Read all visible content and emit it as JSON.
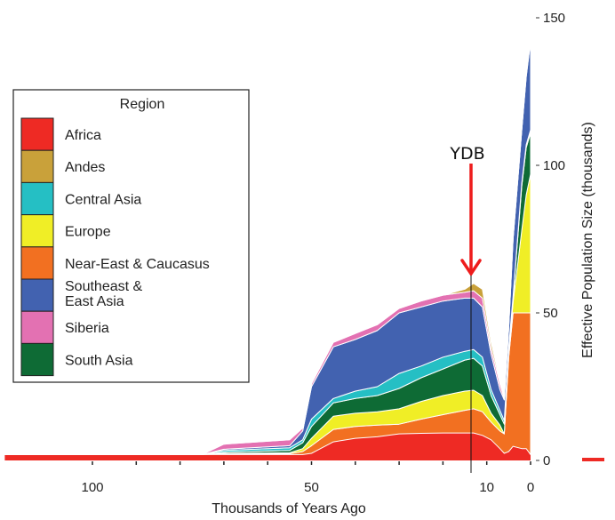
{
  "chart_data": {
    "type": "area",
    "stacked": true,
    "title": "",
    "xlabel": "Thousands of Years Ago",
    "ylabel": "Effective Population Size (thousands)",
    "x_reversed": true,
    "xlim": [
      120,
      0
    ],
    "ylim": [
      0,
      150
    ],
    "x_ticks": [
      100,
      50,
      10,
      0
    ],
    "x_minor_ticks": [
      90,
      80,
      70,
      60,
      40,
      30,
      20
    ],
    "y_ticks": [
      0,
      50,
      100,
      150
    ],
    "y_axis_side": "right",
    "grid": false,
    "legend": {
      "title": "Region",
      "placement": "left"
    },
    "legend_order": [
      "Africa",
      "Andes",
      "Central Asia",
      "Europe",
      "Near-East & Caucasus",
      "Southeast & East Asia",
      "Siberia",
      "South Asia"
    ],
    "x": [
      120,
      75,
      70,
      55,
      52,
      50,
      45,
      40,
      35,
      30,
      25,
      20,
      15,
      13,
      11,
      9,
      7,
      6,
      5,
      4,
      2,
      1,
      0
    ],
    "series": [
      {
        "name": "Africa",
        "color": "#ee2a24",
        "values": [
          2,
          2,
          2,
          2,
          2,
          2.4,
          6.3,
          7.5,
          8,
          9,
          9.2,
          9.3,
          9.3,
          9.3,
          8.5,
          7,
          4,
          2.4,
          3,
          4.8,
          4,
          4,
          2
        ]
      },
      {
        "name": "Near-East & Caucasus",
        "color": "#f27021",
        "values": [
          0,
          0,
          0.2,
          0.3,
          1,
          2.6,
          4.2,
          4,
          4,
          3.3,
          4.8,
          6.2,
          7.7,
          8.2,
          8,
          6,
          6,
          6.6,
          32,
          45.2,
          46,
          46,
          48
        ]
      },
      {
        "name": "Europe",
        "color": "#f0ee26",
        "values": [
          0,
          0,
          0.2,
          0.3,
          1,
          2.5,
          4.5,
          4.5,
          4.5,
          5.2,
          6,
          6.5,
          6.5,
          6.3,
          5.5,
          3,
          2,
          0,
          2,
          3.6,
          28,
          40,
          47
        ]
      },
      {
        "name": "South Asia",
        "color": "#0e6b35",
        "values": [
          0,
          0,
          0.4,
          0.8,
          2,
          4,
          4.5,
          5,
          5.5,
          6.9,
          8,
          9,
          10.5,
          10.8,
          10,
          6,
          3.5,
          3.3,
          1,
          1.4,
          15,
          16,
          14
        ]
      },
      {
        "name": "Central Asia",
        "color": "#25bfc4",
        "values": [
          0,
          0,
          0.6,
          0.9,
          1,
          2.5,
          1.5,
          2.5,
          3,
          5.1,
          4,
          4,
          3,
          3,
          3,
          2,
          1.5,
          1.2,
          0.5,
          0.5,
          1,
          1,
          1
        ]
      },
      {
        "name": "Southeast & East Asia",
        "color": "#4262b0",
        "values": [
          0,
          0,
          0.4,
          0.7,
          3,
          11,
          17.5,
          17.5,
          19,
          20.5,
          20,
          19,
          18,
          17.4,
          17,
          12,
          7,
          7,
          6.5,
          19.5,
          18,
          23,
          30
        ]
      },
      {
        "name": "Siberia",
        "color": "#e371b2",
        "values": [
          0,
          0,
          1.7,
          2,
          1,
          1,
          1.5,
          2,
          2,
          1.5,
          2,
          2,
          2,
          2.5,
          3,
          2,
          2,
          0.5,
          0,
          0,
          0,
          0.5,
          1
        ]
      },
      {
        "name": "Andes",
        "color": "#c9a13a",
        "values": [
          0,
          0,
          0,
          0,
          0,
          0,
          0,
          0,
          0,
          0,
          0,
          0,
          1,
          2.5,
          3,
          2,
          1,
          0,
          0,
          0,
          0,
          0,
          0
        ]
      }
    ],
    "annotations": [
      {
        "text": "YDB",
        "x": 13.5,
        "arrow_color": "#ee1c1c",
        "vertical_line": true
      }
    ]
  }
}
